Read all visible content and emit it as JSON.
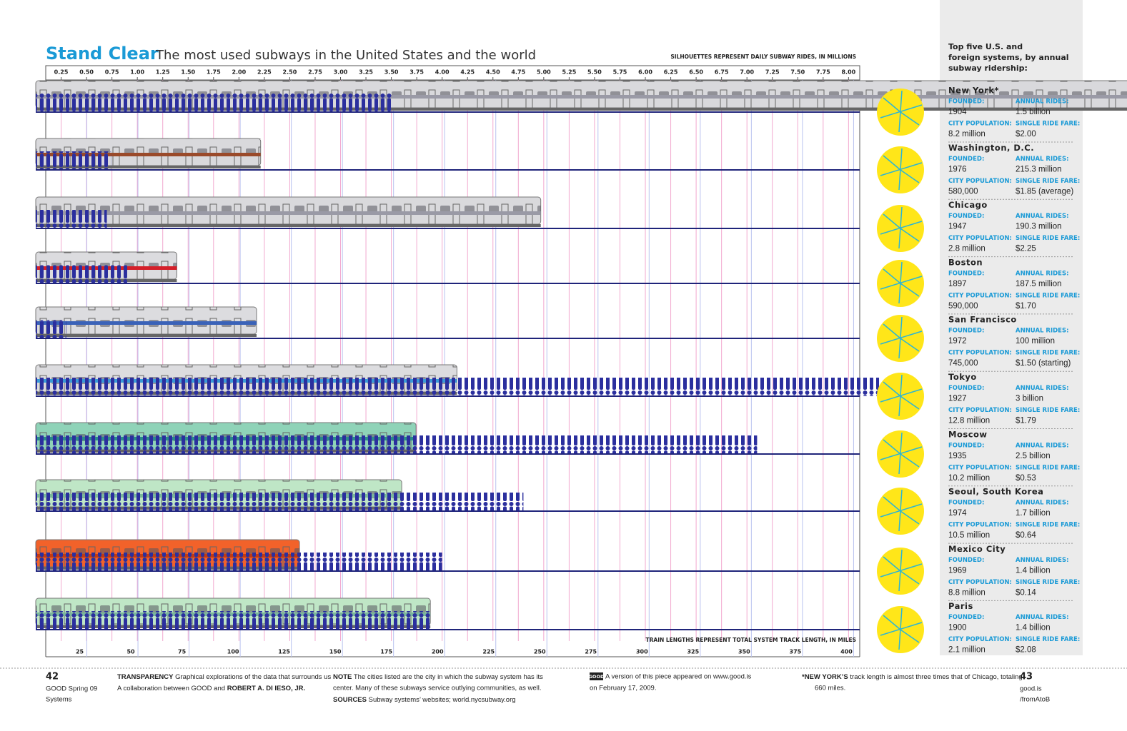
{
  "chart_data": {
    "type": "bar",
    "title": "Stand Clear",
    "subtitle": "The most used subways in the United States and the world",
    "x2_axis_label": "SILHOUETTES REPRESENT DAILY SUBWAY RIDES, IN MILLIONS",
    "x_axis_label": "TRAIN LENGTHS REPRESENT TOTAL SYSTEM TRACK LENGTH, IN MILES",
    "categories": [
      null,
      null,
      null,
      null,
      null,
      null,
      null,
      null,
      null,
      null
    ],
    "track_miles": [
      660,
      110,
      247,
      69,
      108,
      206,
      186,
      179,
      129,
      193
    ],
    "daily_rides": [
      3.5,
      0.74,
      0.7,
      0.9,
      0.3,
      8.3,
      7.1,
      4.8,
      4.0,
      3.9
    ],
    "train_colors": [
      "#d9d9dc",
      "#d9d9dc",
      "#d9d9dc",
      "#dcdcdf",
      "#dcdcdf",
      "#dcdcdf",
      "#8fd3b8",
      "#bfe6c6",
      "#f2622a",
      "#bfe6c6"
    ],
    "stripe_colors": [
      "#9a9aa6",
      "#9a4a2a",
      "#9a9aa6",
      "#d4202a",
      "#3a62b8",
      "#3a9ad8",
      "#2a8a8a",
      "#7ab89a",
      "#c23a12",
      "#7ab89a"
    ],
    "rides_color": "#2b2f9e",
    "baseline_color": "#1f247a",
    "xlim": [
      0,
      403
    ],
    "xticks": [
      25,
      50,
      75,
      100,
      125,
      150,
      175,
      200,
      225,
      250,
      275,
      300,
      325,
      350,
      375,
      400
    ],
    "x2lim": [
      0,
      8.11
    ],
    "x2ticks": [
      0.25,
      {
        "value": 0.5,
        "label": "0.50"
      },
      0.75,
      {
        "value": 1,
        "label": "1.00"
      },
      1.25,
      {
        "value": 1.5,
        "label": "1.50"
      },
      1.75,
      {
        "value": 2,
        "label": "2.00"
      },
      2.25,
      {
        "value": 2.5,
        "label": "2.50"
      },
      2.75,
      {
        "value": 3,
        "label": "3.00"
      },
      3.25,
      {
        "value": 3.5,
        "label": "3.50"
      },
      3.75,
      {
        "value": 4,
        "label": "4.00"
      },
      4.25,
      {
        "value": 4.5,
        "label": "4.50"
      },
      4.75,
      {
        "value": 5,
        "label": "5.00"
      },
      5.25,
      {
        "value": 5.5,
        "label": "5.50"
      },
      5.75,
      {
        "value": 6,
        "label": "6.00"
      },
      6.25,
      {
        "value": 6.5,
        "label": "6.50"
      },
      6.75,
      {
        "value": 7,
        "label": "7.00"
      },
      7.25,
      {
        "value": 7.5,
        "label": "7.50"
      },
      7.75,
      {
        "value": 8,
        "label": "8.00"
      }
    ],
    "grid": true,
    "grid_colors": {
      "x": "#b9c2ef",
      "x2": "#f2a8cf"
    }
  },
  "sidebar": {
    "heading": [
      "Top five U.S. and",
      "foreign systems, by annual",
      "subway ridership:"
    ],
    "labels": {
      "founded": "FOUNDED:",
      "rides": "ANNUAL RIDES:",
      "population": "CITY POPULATION:",
      "fare": "SINGLE RIDE FARE:"
    },
    "systems": [
      {
        "city": "New York*",
        "founded": "1904",
        "rides": "1.5 billion",
        "population": "8.2 million",
        "fare": "$2.00"
      },
      {
        "city": "Washington, D.C.",
        "founded": "1976",
        "rides": "215.3 million",
        "population": "580,000",
        "fare": "$1.85 (average)"
      },
      {
        "city": "Chicago",
        "founded": "1947",
        "rides": "190.3 million",
        "population": "2.8 million",
        "fare": "$2.25"
      },
      {
        "city": "Boston",
        "founded": "1897",
        "rides": "187.5 million",
        "population": "590,000",
        "fare": "$1.70"
      },
      {
        "city": "San Francisco",
        "founded": "1972",
        "rides": "100 million",
        "population": "745,000",
        "fare": "$1.50 (starting)"
      },
      {
        "city": "Tokyo",
        "founded": "1927",
        "rides": "3 billion",
        "population": "12.8 million",
        "fare": "$1.79"
      },
      {
        "city": "Moscow",
        "founded": "1935",
        "rides": "2.5 billion",
        "population": "10.2 million",
        "fare": "$0.53"
      },
      {
        "city": "Seoul, South Korea",
        "founded": "1974",
        "rides": "1.7 billion",
        "population": "10.5 million",
        "fare": "$0.64"
      },
      {
        "city": "Mexico City",
        "founded": "1969",
        "rides": "1.4 billion",
        "population": "8.8 million",
        "fare": "$0.14"
      },
      {
        "city": "Paris",
        "founded": "1900",
        "rides": "1.4 billion",
        "population": "2.1 million",
        "fare": "$2.08"
      }
    ]
  },
  "footer": {
    "left_page": "42",
    "left_pub": "GOOD Spring 09",
    "left_section": "Systems",
    "transparency_head": "TRANSPARENCY",
    "transparency_text": "Graphical explorations of the data that surrounds us",
    "collab_text": "A collaboration between GOOD and ",
    "collab_name": "ROBERT A. DI IESO, JR.",
    "note_head": "NOTE",
    "note_text": "The cities listed are the city in which the subway system has its",
    "note_text2": "center.  Many of these subways service outlying communities, as well.",
    "sources_head": "SOURCES",
    "sources_text": "Subway systems’ websites; world.nycsubway.org",
    "good_badge": "GOOD",
    "version_text": "A version of this piece appeared on www.good.is",
    "version_date": "on February 17, 2009.",
    "ny_head": "*NEW YORK’S",
    "ny_text": "track length is almost three times that of Chicago, totaling",
    "ny_text2": "660 miles.",
    "right_page": "43",
    "right_site": "good.is",
    "right_path": "/fromAtoB"
  }
}
